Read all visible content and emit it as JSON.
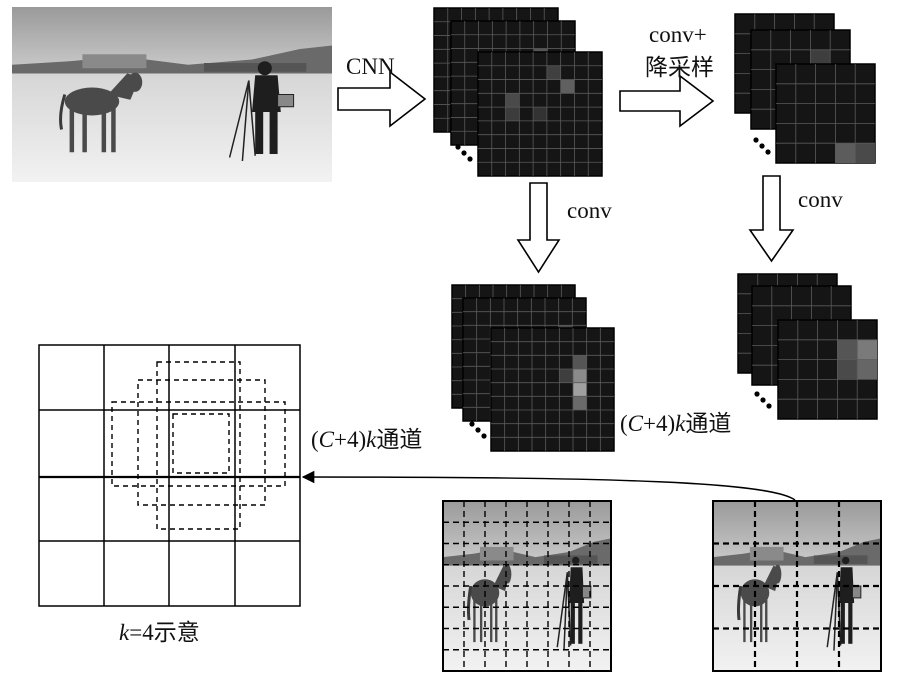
{
  "labels": {
    "cnn": "CNN",
    "conv_downsample_line1": "conv+",
    "conv_downsample_line2": "降采样",
    "conv_left": "conv",
    "conv_right": "conv",
    "channels_middle": {
      "prefix": "(",
      "c": "C",
      "middle": "+4)",
      "k": "k",
      "suffix": "通道"
    },
    "channels_left": {
      "prefix": "(",
      "c": "C",
      "middle": "+4)",
      "k": "k",
      "suffix": "通道"
    },
    "k_caption": {
      "k": "k",
      "rest": "=4示意"
    }
  },
  "colors": {
    "map_bg": "#151515",
    "map_grid": "#5a5a5a",
    "line": "#000000",
    "snow": "#e6e6e6",
    "sky": "#b4b4b4"
  },
  "icons": [
    "ellipsis-dots-icon",
    "hollow-arrow-right-icon",
    "hollow-arrow-down-icon"
  ]
}
